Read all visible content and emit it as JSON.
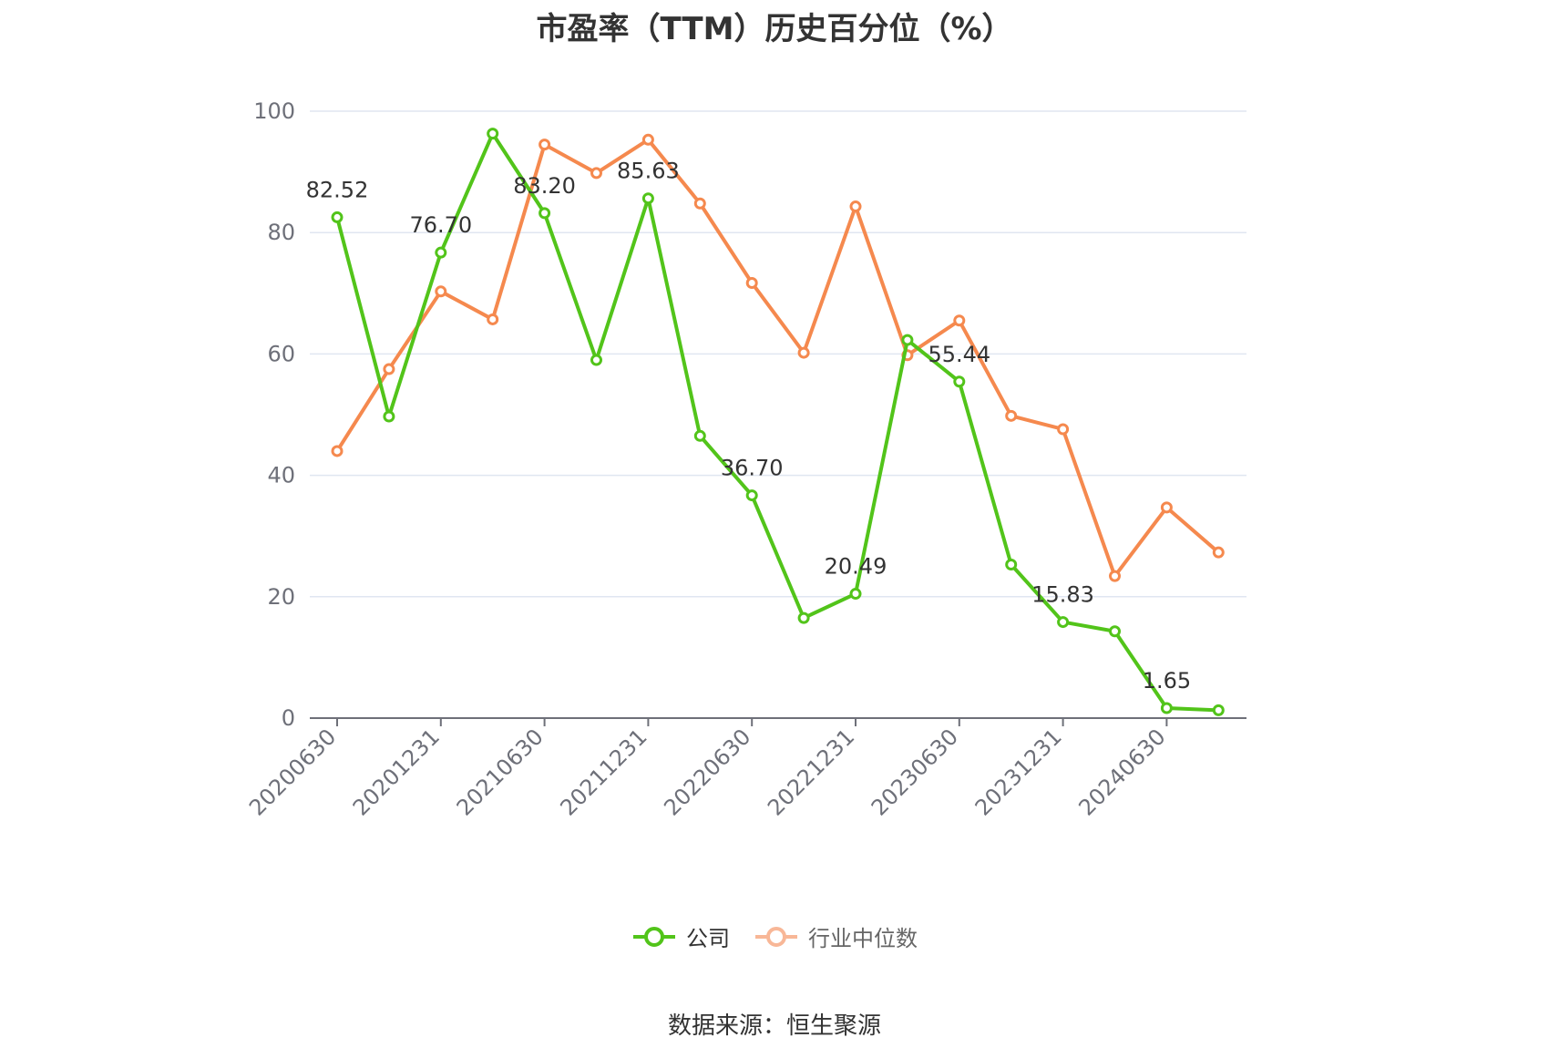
{
  "title": "市盈率（TTM）历史百分位（%）",
  "source_text": "数据来源：恒生聚源",
  "legend": {
    "company_label": "公司",
    "industry_label": "行业中位数"
  },
  "colors": {
    "company": "#52c41a",
    "industry": "#f5894e",
    "industry_legend": "#f8b797",
    "grid": "#e0e6f1",
    "axis": "#6e7079",
    "tick_text": "#6e7079",
    "label_text": "#333333"
  },
  "chart_data": {
    "type": "line",
    "title": "市盈率（TTM）历史百分位（%）",
    "x": [
      "20200630",
      "20200930",
      "20201231",
      "20210331",
      "20210630",
      "20210930",
      "20211231",
      "20220331",
      "20220630",
      "20220930",
      "20221231",
      "20230331",
      "20230630",
      "20230930",
      "20231231",
      "20240331",
      "20240630",
      "20240930"
    ],
    "x_tick_labels": [
      "20200630",
      "20201231",
      "20210630",
      "20211231",
      "20220630",
      "20221231",
      "20230630",
      "20231231",
      "20240630"
    ],
    "ylim": [
      0,
      100
    ],
    "y_ticks": [
      0,
      20,
      40,
      60,
      80,
      100
    ],
    "grid": true,
    "legend_position": "bottom",
    "series": [
      {
        "name": "公司",
        "values": [
          82.52,
          49.7,
          76.7,
          96.3,
          83.2,
          59.0,
          85.63,
          46.5,
          36.7,
          16.5,
          20.49,
          62.3,
          55.44,
          25.3,
          15.83,
          14.3,
          1.65,
          1.3
        ],
        "labels": [
          "82.52",
          "",
          "76.70",
          "",
          "83.20",
          "",
          "85.63",
          "",
          "36.70",
          "",
          "20.49",
          "",
          "55.44",
          "",
          "15.83",
          "",
          "1.65",
          ""
        ]
      },
      {
        "name": "行业中位数",
        "values": [
          44.0,
          57.5,
          70.3,
          65.7,
          94.5,
          89.8,
          95.3,
          84.8,
          71.7,
          60.2,
          84.3,
          59.8,
          65.5,
          49.8,
          47.6,
          23.4,
          34.7,
          27.3
        ]
      }
    ]
  }
}
